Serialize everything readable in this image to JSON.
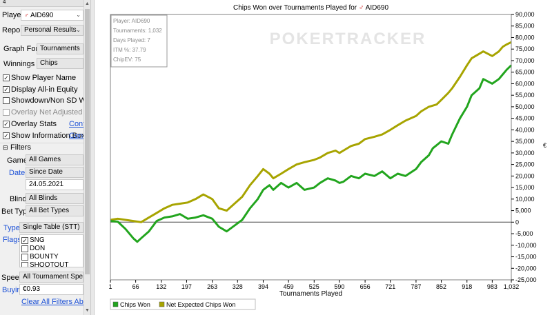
{
  "sidebar": {
    "top_text": "4",
    "player_label": "Player:",
    "player_value": "AID690",
    "report_label": "Report:",
    "report_value": "Personal Results",
    "graph_for_label": "Graph For:",
    "graph_for_value": "Tournaments",
    "winnings_in_label": "Winnings in:",
    "winnings_in_value": "Chips",
    "options": [
      {
        "label": "Show Player Name",
        "checked": true,
        "disabled": false
      },
      {
        "label": "Display All-in Equity",
        "checked": true,
        "disabled": false
      },
      {
        "label": "Showdown/Non SD Winnings",
        "checked": false,
        "disabled": false
      },
      {
        "label": "Overlay Net Adjusted",
        "checked": false,
        "disabled": true
      },
      {
        "label": "Overlay Stats",
        "checked": true,
        "disabled": false,
        "link": "Confi"
      },
      {
        "label": "Show Information Box",
        "checked": true,
        "disabled": false,
        "link": "Confi"
      }
    ],
    "filters_header": "Filters",
    "game_label": "Game:",
    "game_value": "All Games",
    "date_label": "Date:",
    "date_value": "Since Date",
    "date_input": "24.05.2021",
    "blind_label": "Blind:",
    "blind_value": "All Blinds",
    "bet_type_label": "Bet Type:",
    "bet_type_value": "All Bet Types",
    "type_label": "Type:",
    "type_value": "Single Table (STT)",
    "flags_label": "Flags:",
    "flags": [
      {
        "label": "SNG",
        "checked": true
      },
      {
        "label": "DON",
        "checked": false
      },
      {
        "label": "BOUNTY",
        "checked": false
      },
      {
        "label": "SHOOTOUT",
        "checked": false
      }
    ],
    "speed_label": "Speed:",
    "speed_value": "All Tournament Speeds",
    "buyin_label": "Buyin:",
    "buyin_value": "€0.93",
    "clear_filters": "Clear All Filters Above"
  },
  "chart_data": {
    "type": "line",
    "title": "Chips Won over Tournaments Played for",
    "title_player": "AID690",
    "watermark": "POKERTRACKER",
    "xlabel": "Tournaments Played",
    "ylabel": "",
    "xlim": [
      1,
      1032
    ],
    "ylim": [
      -25000,
      90000
    ],
    "x_ticks": [
      "1",
      "66",
      "132",
      "197",
      "263",
      "328",
      "394",
      "459",
      "525",
      "590",
      "656",
      "721",
      "787",
      "852",
      "918",
      "983",
      "1,032"
    ],
    "y_ticks": [
      "90,000",
      "85,000",
      "80,000",
      "75,000",
      "70,000",
      "65,000",
      "60,000",
      "55,000",
      "50,000",
      "45,000",
      "40,000",
      "35,000",
      "30,000",
      "25,000",
      "20,000",
      "15,000",
      "10,000",
      "5,000",
      "0",
      "-5,000",
      "-10,000",
      "-15,000",
      "-20,000",
      "-25,000"
    ],
    "y_tick_values": [
      90000,
      85000,
      80000,
      75000,
      70000,
      65000,
      60000,
      55000,
      50000,
      45000,
      40000,
      35000,
      30000,
      25000,
      20000,
      15000,
      10000,
      5000,
      0,
      -5000,
      -10000,
      -15000,
      -20000,
      -25000
    ],
    "right_axis_symbol": "€",
    "info_box": [
      "Player: AID690",
      "Tournaments: 1,032",
      "Days Played: 7",
      "ITM %: 37.79",
      "ChipEV: 75"
    ],
    "colors": {
      "chips_won": "#22a51e",
      "net_expected": "#a7a400"
    },
    "series": [
      {
        "name": "Chips Won",
        "x": [
          1,
          20,
          40,
          60,
          70,
          80,
          100,
          120,
          140,
          160,
          180,
          200,
          220,
          240,
          263,
          280,
          300,
          320,
          340,
          360,
          380,
          394,
          410,
          420,
          440,
          459,
          480,
          500,
          525,
          540,
          560,
          580,
          590,
          600,
          620,
          640,
          656,
          680,
          700,
          721,
          740,
          760,
          787,
          800,
          820,
          830,
          852,
          870,
          880,
          900,
          918,
          930,
          950,
          960,
          983,
          1000,
          1010,
          1020,
          1032
        ],
        "values": [
          500,
          200,
          -3000,
          -7000,
          -8500,
          -7000,
          -4000,
          500,
          2000,
          2500,
          3500,
          1500,
          2000,
          3000,
          1500,
          -2000,
          -4000,
          -1500,
          1000,
          6000,
          10000,
          14000,
          16000,
          14000,
          17000,
          15000,
          17000,
          14000,
          15000,
          17000,
          19000,
          18000,
          17000,
          17500,
          20000,
          19000,
          21000,
          20000,
          22000,
          19000,
          21000,
          20000,
          23000,
          26000,
          29000,
          32000,
          35000,
          34000,
          38000,
          45000,
          50000,
          55000,
          58000,
          62000,
          60000,
          62000,
          64000,
          66000,
          68000
        ]
      },
      {
        "name": "Net Expected Chips Won",
        "x": [
          1,
          20,
          40,
          60,
          80,
          100,
          120,
          140,
          160,
          180,
          200,
          220,
          240,
          263,
          280,
          300,
          320,
          340,
          360,
          380,
          394,
          410,
          420,
          440,
          459,
          480,
          500,
          525,
          540,
          560,
          580,
          590,
          600,
          620,
          640,
          656,
          680,
          700,
          721,
          740,
          760,
          787,
          800,
          820,
          840,
          852,
          870,
          880,
          900,
          918,
          930,
          950,
          960,
          983,
          1000,
          1010,
          1020,
          1032
        ],
        "values": [
          1000,
          1500,
          1000,
          500,
          0,
          2000,
          4000,
          6000,
          7500,
          8000,
          8500,
          10000,
          12000,
          10000,
          6000,
          5000,
          8000,
          11000,
          16000,
          20000,
          23000,
          21000,
          19000,
          21000,
          23000,
          25000,
          26000,
          27000,
          28000,
          30000,
          31000,
          30000,
          31000,
          33000,
          34000,
          36000,
          37000,
          38000,
          40000,
          42000,
          44000,
          46000,
          48000,
          50000,
          51000,
          53000,
          56000,
          58000,
          63000,
          68000,
          71000,
          73000,
          74000,
          72000,
          74000,
          76000,
          77000,
          78000
        ]
      }
    ]
  }
}
